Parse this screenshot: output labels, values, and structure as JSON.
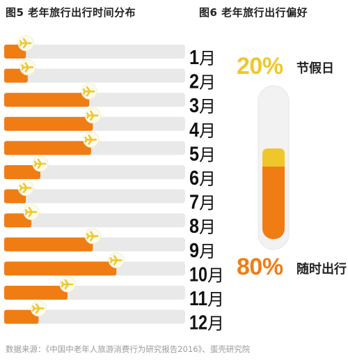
{
  "left_title": "图5 老年旅行出行时间分布",
  "right_title": "图6 老年旅行出行偏好",
  "colors": {
    "orange": "#ef7d14",
    "gray_bar": "#e9e9e9",
    "yellow": "#f0c72b",
    "plane_bg": "#fcfbee",
    "month_text": "#111111"
  },
  "chart_data": [
    {
      "type": "bar",
      "title": "图5 老年旅行出行时间分布",
      "categories": [
        "1月",
        "2月",
        "3月",
        "4月",
        "5月",
        "6月",
        "7月",
        "8月",
        "9月",
        "10月",
        "11月",
        "12月"
      ],
      "values": [
        12,
        13,
        47,
        49,
        48,
        20,
        12,
        15,
        49,
        62,
        35,
        19
      ],
      "ylim": [
        0,
        100
      ],
      "xlabel": "",
      "ylabel": "",
      "grid": false,
      "legend": "none"
    },
    {
      "type": "bar",
      "title": "图6 老年旅行出行偏好",
      "categories": [
        "节假日",
        "随时出行"
      ],
      "values": [
        20,
        80
      ],
      "labels": [
        "20%",
        "80%"
      ],
      "colors": [
        "#f0c72b",
        "#ef7d14"
      ],
      "legend": "none"
    }
  ],
  "preference": {
    "holiday_pct": "20%",
    "holiday_label": "节假日",
    "anytime_pct": "80%",
    "anytime_label": "随时出行"
  },
  "source_text": "数据来源：《中国中老年人旅游消费行为研究报告2016》、蛋壳研究院"
}
